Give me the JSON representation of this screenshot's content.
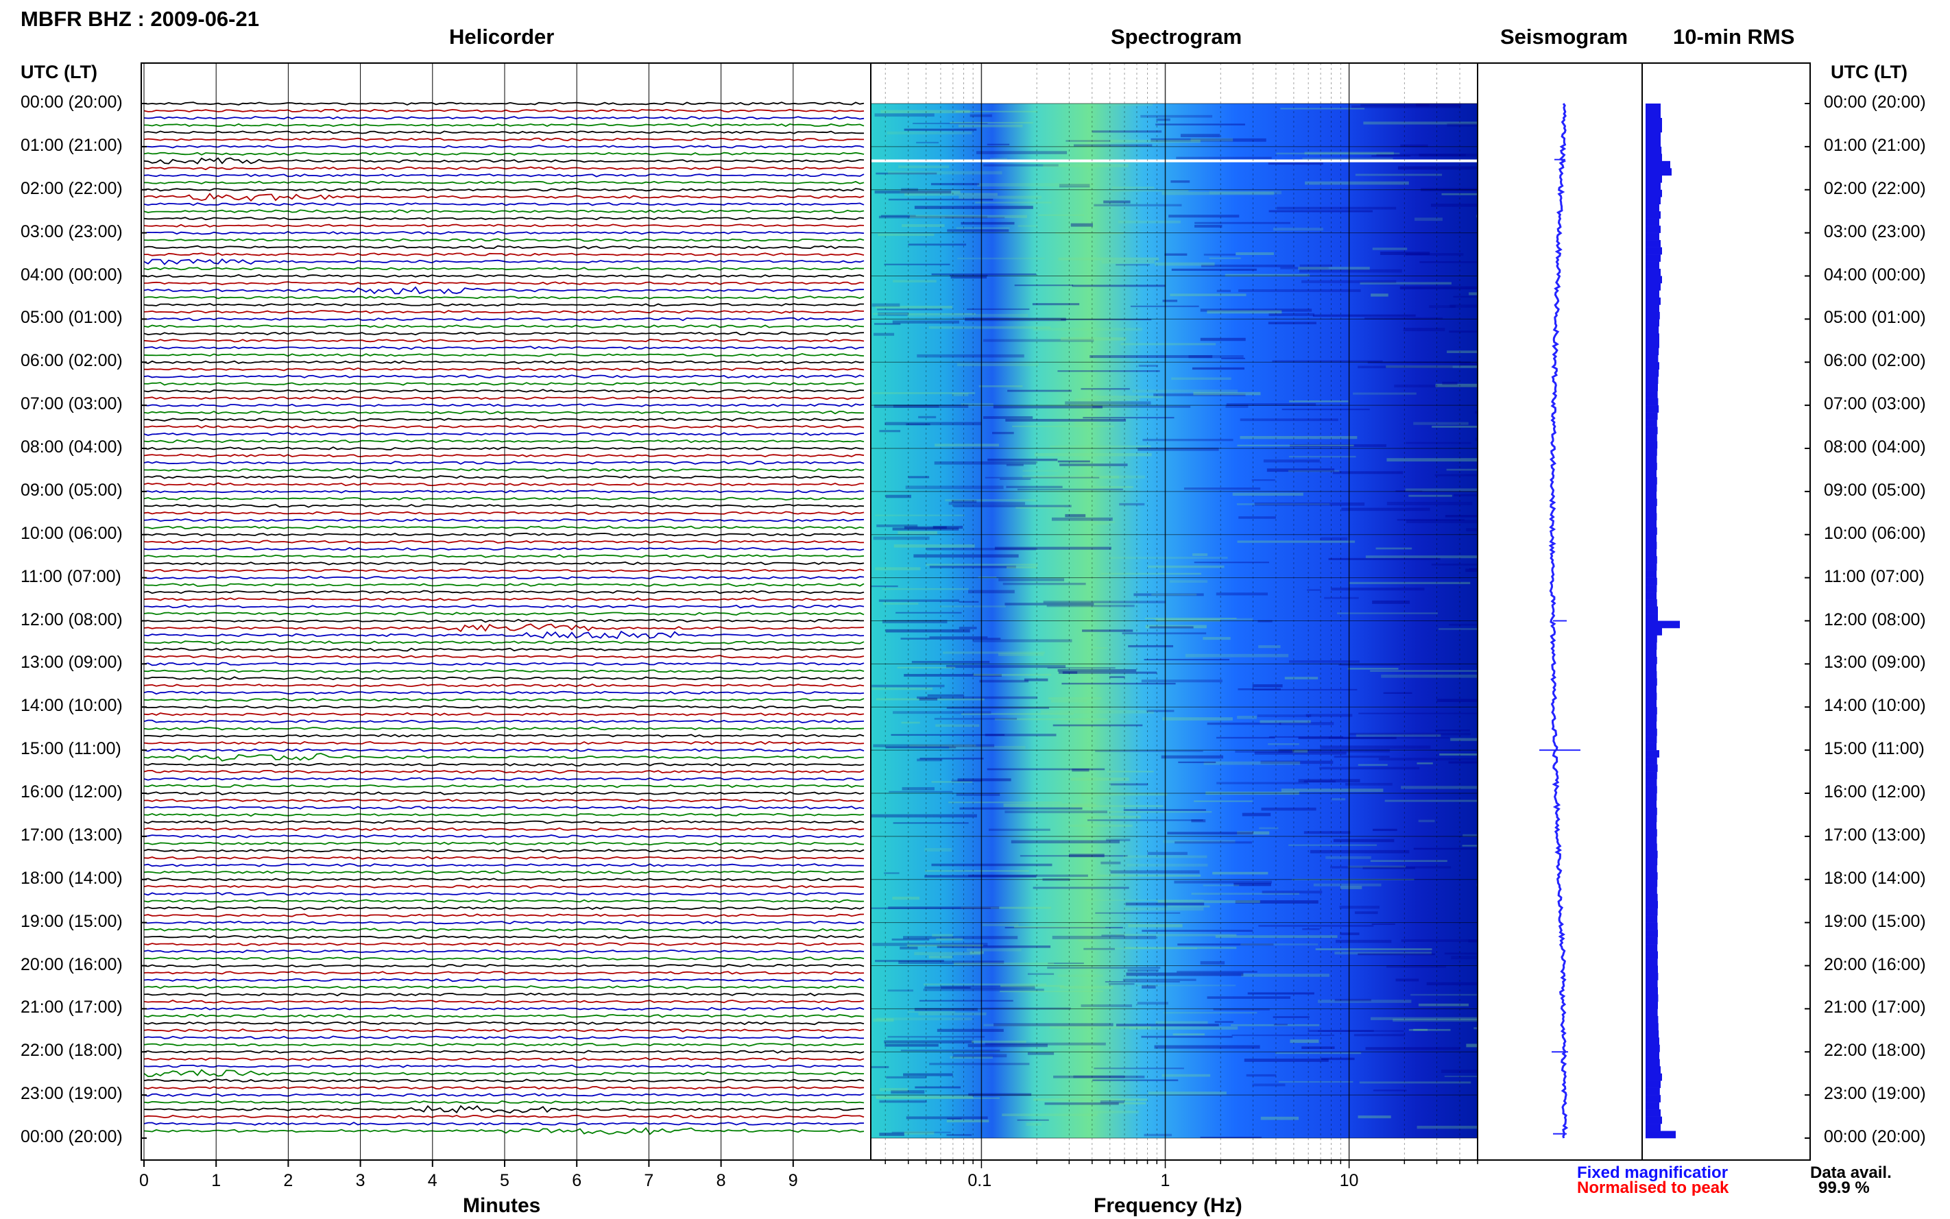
{
  "header": {
    "station_title": "MBFR BHZ : 2009-06-21",
    "utc_lt_left": "UTC (LT)",
    "utc_lt_right": "UTC (LT)"
  },
  "panels": {
    "helicorder": "Helicorder",
    "spectrogram": "Spectrogram",
    "seismogram": "Seismogram",
    "rms": "10-min RMS"
  },
  "legend": {
    "fixed": "Fixed magnificatior",
    "fixed_color": "#1010ff",
    "normalised": "Normalised to peak",
    "normalised_color": "#ff0000"
  },
  "availability": {
    "label": "Data avail.",
    "value": "99.9 %"
  },
  "time_labels": [
    "00:00 (20:00)",
    "01:00 (21:00)",
    "02:00 (22:00)",
    "03:00 (23:00)",
    "04:00 (00:00)",
    "05:00 (01:00)",
    "06:00 (02:00)",
    "07:00 (03:00)",
    "08:00 (04:00)",
    "09:00 (05:00)",
    "10:00 (06:00)",
    "11:00 (07:00)",
    "12:00 (08:00)",
    "13:00 (09:00)",
    "14:00 (10:00)",
    "15:00 (11:00)",
    "16:00 (12:00)",
    "17:00 (13:00)",
    "18:00 (14:00)",
    "19:00 (15:00)",
    "20:00 (16:00)",
    "21:00 (17:00)",
    "22:00 (18:00)",
    "23:00 (19:00)",
    "00:00 (20:00)"
  ],
  "colors": {
    "trace_cycle": [
      "#000000",
      "#b00000",
      "#0000c0",
      "#008000"
    ],
    "spectro_low": "#00008f",
    "spectro_mid": "#1f6bff",
    "spectro_high": "#7de08a",
    "rms_bar": "#1414e6",
    "seismogram": "#2424ff"
  },
  "chart_data": [
    {
      "type": "line",
      "name": "Helicorder",
      "title": "Helicorder",
      "xlabel": "Minutes",
      "x_ticks": [
        "0",
        "1",
        "2",
        "3",
        "4",
        "5",
        "6",
        "7",
        "8",
        "9"
      ],
      "xlim": [
        0,
        10
      ],
      "ylim_hours_utc": [
        0,
        24
      ],
      "rows": 144,
      "minutes_per_row": 10
    },
    {
      "type": "heatmap",
      "name": "Spectrogram",
      "title": "Spectrogram",
      "xlabel": "Frequency (Hz)",
      "x_scale": "log",
      "x_ticks": [
        "0.1",
        "1",
        "10"
      ],
      "xlim_hz": [
        0.025,
        50
      ],
      "ylim_hours_utc": [
        0,
        24
      ],
      "notes": "energy highest near 0.2-0.6 Hz; gap near 01:20 UTC"
    },
    {
      "type": "line",
      "name": "Seismogram",
      "title": "Seismogram",
      "ylim_hours_utc": [
        0,
        24
      ]
    },
    {
      "type": "bar",
      "name": "10-min RMS",
      "title": "10-min RMS",
      "orientation": "horizontal",
      "ylim_hours_utc": [
        0,
        24
      ],
      "bins": 144,
      "relative_values": [
        0.55,
        0.55,
        0.6,
        0.6,
        0.55,
        0.55,
        0.58,
        0.6,
        0.9,
        0.95,
        0.6,
        0.55,
        0.6,
        0.55,
        0.5,
        0.55,
        0.5,
        0.55,
        0.5,
        0.55,
        0.6,
        0.55,
        0.5,
        0.55,
        0.6,
        0.55,
        0.5,
        0.55,
        0.5,
        0.52,
        0.5,
        0.48,
        0.5,
        0.5,
        0.48,
        0.46,
        0.5,
        0.48,
        0.46,
        0.45,
        0.44,
        0.46,
        0.48,
        0.44,
        0.42,
        0.44,
        0.42,
        0.43,
        0.42,
        0.41,
        0.42,
        0.4,
        0.42,
        0.41,
        0.4,
        0.42,
        0.4,
        0.41,
        0.4,
        0.42,
        0.4,
        0.41,
        0.4,
        0.42,
        0.41,
        0.4,
        0.42,
        0.41,
        0.4,
        0.42,
        0.45,
        0.45,
        1.25,
        0.6,
        0.42,
        0.41,
        0.4,
        0.42,
        0.4,
        0.41,
        0.42,
        0.4,
        0.41,
        0.4,
        0.42,
        0.41,
        0.4,
        0.42,
        0.41,
        0.4,
        0.5,
        0.42,
        0.44,
        0.42,
        0.41,
        0.42,
        0.41,
        0.4,
        0.42,
        0.41,
        0.4,
        0.42,
        0.41,
        0.42,
        0.44,
        0.43,
        0.42,
        0.44,
        0.43,
        0.42,
        0.44,
        0.45,
        0.44,
        0.43,
        0.44,
        0.45,
        0.44,
        0.43,
        0.45,
        0.44,
        0.45,
        0.46,
        0.44,
        0.45,
        0.46,
        0.45,
        0.44,
        0.46,
        0.47,
        0.48,
        0.5,
        0.52,
        0.5,
        0.52,
        0.55,
        0.6,
        0.55,
        0.52,
        0.55,
        0.5,
        0.55,
        0.6,
        0.55,
        1.1
      ]
    }
  ]
}
